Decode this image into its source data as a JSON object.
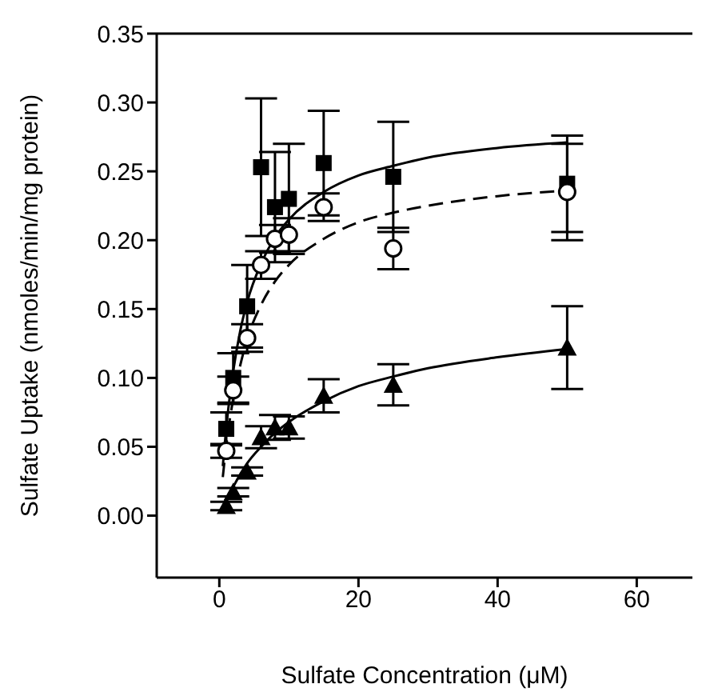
{
  "chart_data": {
    "type": "scatter",
    "xlabel": "Sulfate Concentration (μM)",
    "ylabel": "Sulfate Uptake (nmoles/min/mg protein)",
    "xlim": [
      -9,
      68
    ],
    "xticks": [
      0,
      20,
      40,
      60
    ],
    "ylim": [
      -0.045,
      0.35
    ],
    "yticks": [
      {
        "value": 0,
        "label": "0.00"
      },
      {
        "value": 0.05,
        "label": "0.05"
      },
      {
        "value": 0.1,
        "label": "0.10"
      },
      {
        "value": 0.15,
        "label": "0.15"
      },
      {
        "value": 0.2,
        "label": "0.20"
      },
      {
        "value": 0.25,
        "label": "0.25"
      },
      {
        "value": 0.3,
        "label": "0.30"
      },
      {
        "value": 0.35,
        "label": "0.35"
      }
    ],
    "grid": false,
    "legend": false,
    "series": [
      {
        "marker": "square",
        "color": "#000000",
        "x": [
          1,
          2,
          4,
          6,
          8,
          10,
          15,
          25,
          50
        ],
        "values": [
          0.063,
          0.1,
          0.152,
          0.253,
          0.224,
          0.23,
          0.256,
          0.246,
          0.241
        ],
        "errors": [
          0.012,
          0.018,
          0.03,
          0.05,
          0.04,
          0.04,
          0.038,
          0.04,
          0.035
        ]
      },
      {
        "marker": "circle",
        "color": "#000000",
        "x": [
          1,
          2,
          4,
          6,
          8,
          10,
          15,
          25,
          50
        ],
        "values": [
          0.047,
          0.091,
          0.129,
          0.182,
          0.201,
          0.204,
          0.224,
          0.194,
          0.235
        ],
        "errors": [
          0.005,
          0.01,
          0.01,
          0.01,
          0.01,
          0.012,
          0.01,
          0.015,
          0.035
        ]
      },
      {
        "marker": "triangle",
        "color": "#000000",
        "x": [
          1,
          2,
          4,
          6,
          8,
          10,
          15,
          25,
          50
        ],
        "values": [
          0.007,
          0.017,
          0.032,
          0.057,
          0.064,
          0.064,
          0.087,
          0.095,
          0.122
        ],
        "errors": [
          0.003,
          0.003,
          0.003,
          0.008,
          0.009,
          0.008,
          0.012,
          0.015,
          0.03
        ]
      },
      {
        "type": "line",
        "marker": "none",
        "line_style": "solid",
        "color": "#000000",
        "x": [
          0.5,
          1,
          2,
          3,
          4,
          6,
          8,
          10,
          15,
          20,
          25,
          30,
          40,
          50
        ],
        "values": [
          0.036,
          0.064,
          0.105,
          0.134,
          0.155,
          0.183,
          0.202,
          0.215,
          0.235,
          0.247,
          0.254,
          0.26,
          0.267,
          0.271
        ]
      },
      {
        "type": "line",
        "marker": "none",
        "line_style": "dashed",
        "color": "#000000",
        "x": [
          0.5,
          1,
          2,
          3,
          4,
          6,
          8,
          10,
          15,
          20,
          25,
          30,
          40,
          50
        ],
        "values": [
          0.028,
          0.051,
          0.085,
          0.109,
          0.128,
          0.153,
          0.17,
          0.182,
          0.201,
          0.213,
          0.22,
          0.225,
          0.232,
          0.236
        ]
      },
      {
        "type": "line",
        "marker": "none",
        "line_style": "solid",
        "color": "#000000",
        "x": [
          0.5,
          1,
          2,
          3,
          4,
          6,
          8,
          10,
          15,
          20,
          25,
          30,
          40,
          50
        ],
        "values": [
          0.006,
          0.012,
          0.021,
          0.03,
          0.038,
          0.05,
          0.06,
          0.068,
          0.083,
          0.094,
          0.101,
          0.107,
          0.115,
          0.121
        ]
      }
    ]
  }
}
